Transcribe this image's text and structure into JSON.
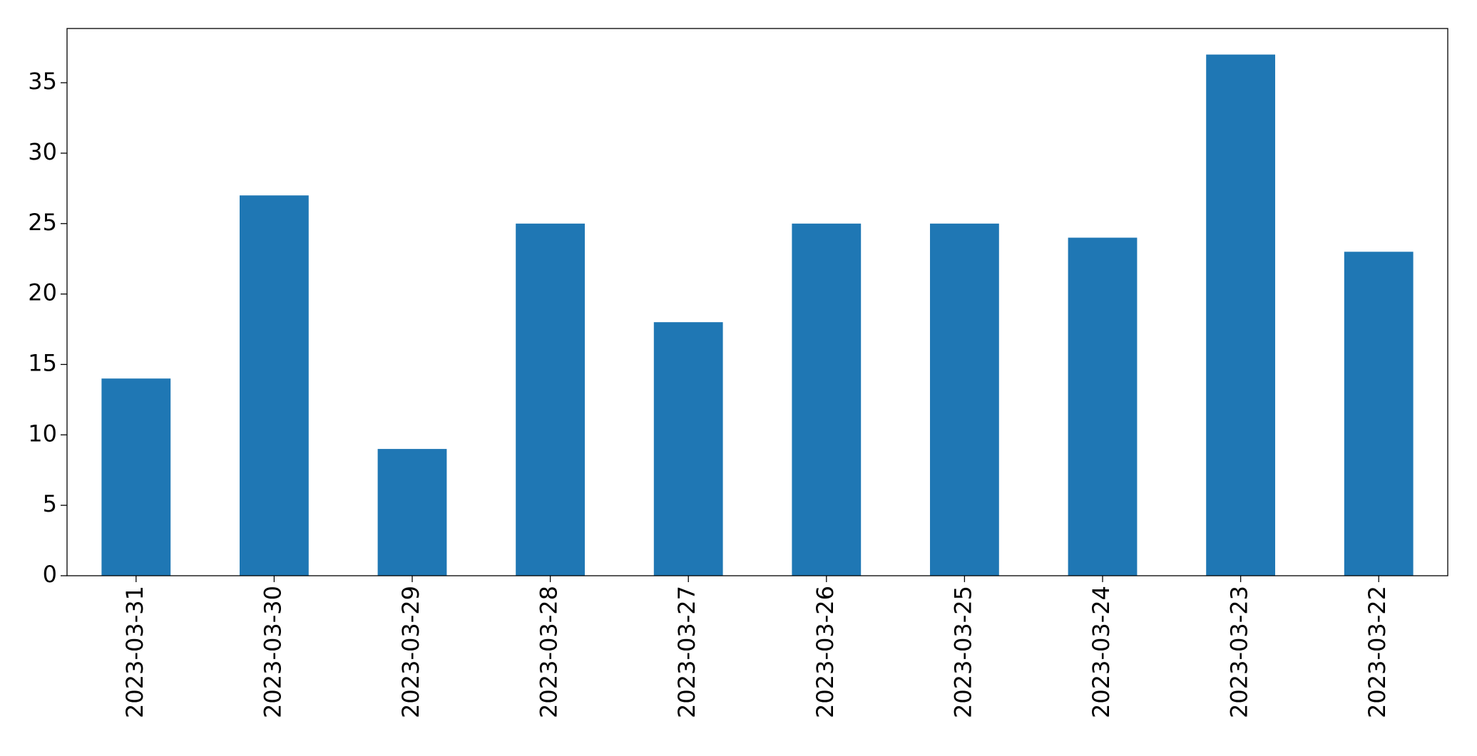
{
  "chart_data": {
    "type": "bar",
    "categories": [
      "2023-03-31",
      "2023-03-30",
      "2023-03-29",
      "2023-03-28",
      "2023-03-27",
      "2023-03-26",
      "2023-03-25",
      "2023-03-24",
      "2023-03-23",
      "2023-03-22"
    ],
    "values": [
      14,
      27,
      9,
      25,
      18,
      25,
      25,
      24,
      37,
      23
    ],
    "color": "#1f77b4",
    "ylim": [
      0,
      38.85
    ],
    "yticks": [
      0,
      5,
      10,
      15,
      20,
      25,
      30,
      35
    ],
    "grid": false
  }
}
